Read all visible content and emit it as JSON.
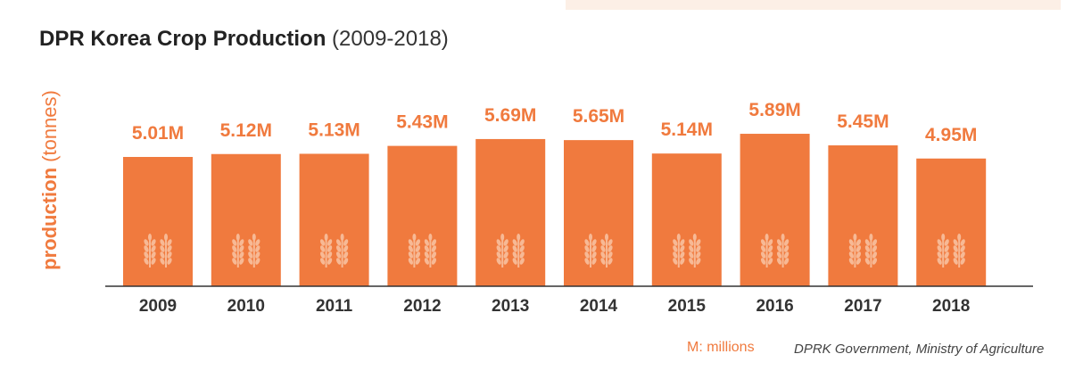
{
  "chart_data": {
    "type": "bar",
    "title": "DPR Korea Crop Production",
    "subtitle": "(2009-2018)",
    "ylabel_bold": "production",
    "ylabel_unit": "(tonnes)",
    "categories": [
      "2009",
      "2010",
      "2011",
      "2012",
      "2013",
      "2014",
      "2015",
      "2016",
      "2017",
      "2018"
    ],
    "values": [
      5.01,
      5.12,
      5.13,
      5.43,
      5.69,
      5.65,
      5.14,
      5.89,
      5.45,
      4.95
    ],
    "value_labels": [
      "5.01M",
      "5.12M",
      "5.13M",
      "5.43M",
      "5.69M",
      "5.65M",
      "5.14M",
      "5.89M",
      "5.45M",
      "4.95M"
    ],
    "grid": false,
    "colors": {
      "bar": "#f07a3e",
      "icon": "#f7b995",
      "label": "#f07a3e",
      "axis": "#333333"
    },
    "bar_icon": "wheat-icon"
  },
  "legend_note": "M: millions",
  "source": "DPRK Government, Ministry of Agriculture"
}
